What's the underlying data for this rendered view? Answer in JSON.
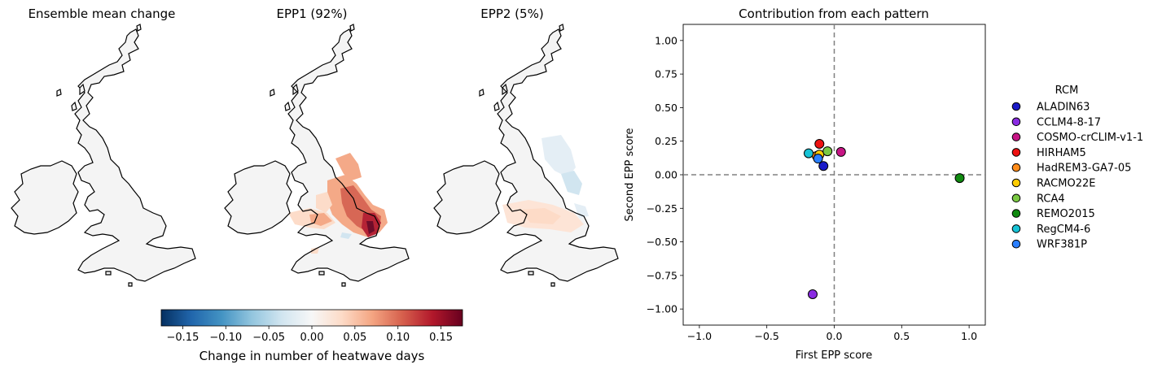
{
  "maps": {
    "panels": [
      {
        "title": "Ensemble mean change",
        "pattern": "mean"
      },
      {
        "title": "EPP1 (92%)",
        "pattern": "epp1"
      },
      {
        "title": "EPP2 (5%)",
        "pattern": "epp2"
      }
    ],
    "colorbar": {
      "label": "Change in number of heatwave days",
      "colormap": "RdBu_r",
      "min": -0.175,
      "max": 0.175,
      "ticks": [
        "−0.15",
        "−0.10",
        "−0.05",
        "0.00",
        "0.05",
        "0.10",
        "0.15"
      ],
      "tick_values": [
        -0.15,
        -0.1,
        -0.05,
        0.0,
        0.05,
        0.1,
        0.15
      ]
    }
  },
  "chart_data": {
    "type": "scatter",
    "title": "Contribution from each pattern",
    "xlabel": "First EPP score",
    "ylabel": "Second EPP score",
    "xlim": [
      -1.12,
      1.12
    ],
    "ylim": [
      -1.12,
      1.12
    ],
    "xticks": [
      -1.0,
      -0.5,
      0.0,
      0.5,
      1.0
    ],
    "xtick_labels": [
      "−1.0",
      "−0.5",
      "0.0",
      "0.5",
      "1.0"
    ],
    "yticks": [
      1.0,
      0.75,
      0.5,
      0.25,
      0.0,
      -0.25,
      -0.5,
      -0.75,
      -1.0
    ],
    "ytick_labels": [
      "1.00",
      "0.75",
      "0.50",
      "0.25",
      "0.00",
      "−0.25",
      "−0.50",
      "−0.75",
      "−1.00"
    ],
    "reference_lines": {
      "x": 0,
      "y": 0,
      "style": "dashed",
      "color": "#808080"
    },
    "grid": false,
    "legend": {
      "title": "RCM",
      "placement": "outside-right"
    },
    "series": [
      {
        "name": "ALADIN63",
        "x": -0.08,
        "y": 0.065,
        "color": "#1a1ac8"
      },
      {
        "name": "CCLM4-8-17",
        "x": -0.16,
        "y": -0.89,
        "color": "#8a2be2"
      },
      {
        "name": "COSMO-crCLIM-v1-1",
        "x": 0.05,
        "y": 0.17,
        "color": "#c71585"
      },
      {
        "name": "HIRHAM5",
        "x": -0.11,
        "y": 0.23,
        "color": "#ee1111"
      },
      {
        "name": "HadREM3-GA7-05",
        "x": -0.13,
        "y": 0.14,
        "color": "#ff8c1a"
      },
      {
        "name": "RACMO22E",
        "x": -0.11,
        "y": 0.15,
        "color": "#ffcc00"
      },
      {
        "name": "RCA4",
        "x": -0.05,
        "y": 0.175,
        "color": "#7ac943"
      },
      {
        "name": "REMO2015",
        "x": 0.93,
        "y": -0.025,
        "color": "#108a10"
      },
      {
        "name": "RegCM4-6",
        "x": -0.19,
        "y": 0.16,
        "color": "#17c3d6"
      },
      {
        "name": "WRF381P",
        "x": -0.12,
        "y": 0.12,
        "color": "#2a7fff"
      }
    ]
  }
}
